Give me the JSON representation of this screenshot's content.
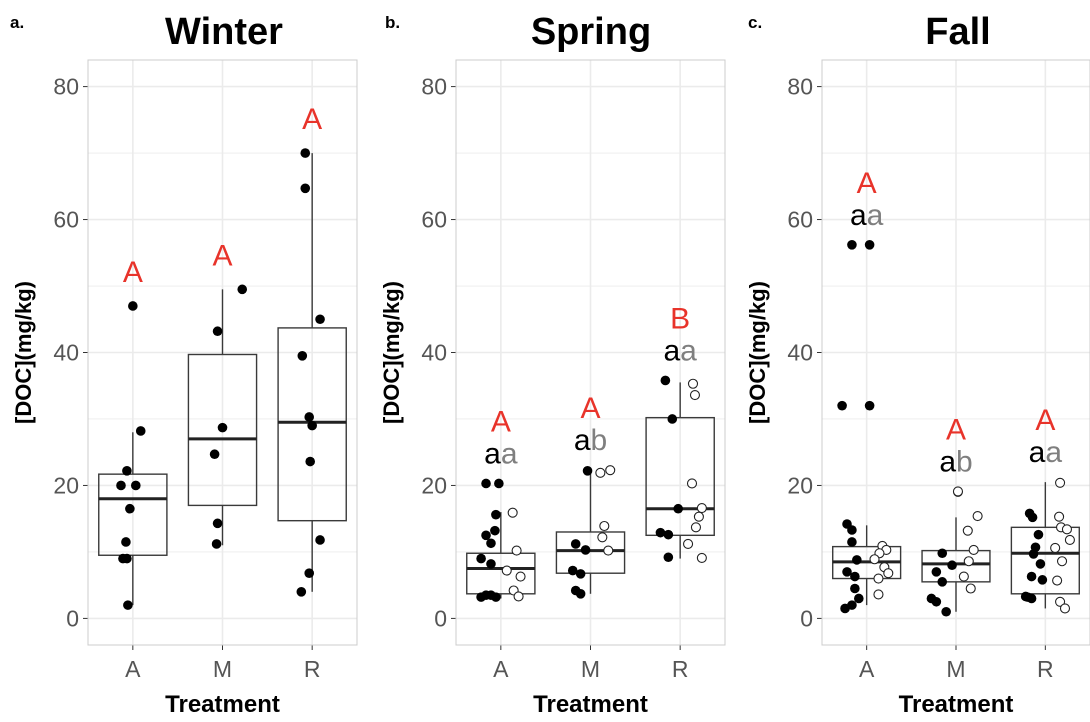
{
  "colors": {
    "letter_red": "#e8332a",
    "letter_gray": "#7f7f7f",
    "grid": "#ebebeb",
    "frame": "#cccccc",
    "box": "#3a3a3a",
    "point": "#000000"
  },
  "chart_data": [
    {
      "type": "box",
      "tag": "a.",
      "title": "Winter",
      "xlabel": "Treatment",
      "ylabel": "[DOC](mg/kg)",
      "categories": [
        "A",
        "M",
        "R"
      ],
      "y_ticks": [
        "0",
        "20",
        "40",
        "60",
        "80"
      ],
      "ylim": [
        -4,
        84
      ],
      "grid": true,
      "boxes": [
        {
          "category": "A",
          "q1": 9.5,
          "median": 18,
          "q3": 21.7,
          "whisker_low": 2,
          "whisker_high": 28
        },
        {
          "category": "M",
          "q1": 17,
          "median": 27,
          "q3": 39.7,
          "whisker_low": 11,
          "whisker_high": 49.5
        },
        {
          "category": "R",
          "q1": 14.7,
          "median": 29.5,
          "q3": 43.7,
          "whisker_low": 4,
          "whisker_high": 70
        }
      ],
      "points_filled": [
        {
          "category": "A",
          "values": [
            47,
            28.2,
            22.2,
            20,
            20,
            16.5,
            11.5,
            9,
            9,
            2
          ],
          "offsets": [
            0,
            0.08,
            -0.06,
            0.03,
            -0.12,
            -0.03,
            -0.07,
            -0.1,
            -0.06,
            -0.05
          ]
        },
        {
          "category": "M",
          "values": [
            49.5,
            43.2,
            28.7,
            24.7,
            14.3,
            11.2
          ],
          "offsets": [
            0.2,
            -0.05,
            0,
            -0.08,
            -0.05,
            -0.06
          ]
        },
        {
          "category": "R",
          "values": [
            70,
            64.7,
            45,
            39.5,
            30.3,
            29,
            23.6,
            11.8,
            6.8,
            4
          ],
          "offsets": [
            -0.07,
            -0.07,
            0.08,
            -0.1,
            -0.03,
            0,
            -0.02,
            0.08,
            -0.03,
            -0.11
          ]
        }
      ],
      "points_open": [],
      "letters": [
        {
          "category": "A",
          "red": "A",
          "pair": ""
        },
        {
          "category": "M",
          "red": "A",
          "pair": ""
        },
        {
          "category": "R",
          "red": "A",
          "pair": ""
        }
      ]
    },
    {
      "type": "box",
      "tag": "b.",
      "title": "Spring",
      "xlabel": "Treatment",
      "ylabel": "[DOC](mg/kg)",
      "categories": [
        "A",
        "M",
        "R"
      ],
      "y_ticks": [
        "0",
        "20",
        "40",
        "60",
        "80"
      ],
      "ylim": [
        -4,
        84
      ],
      "grid": true,
      "boxes": [
        {
          "category": "A",
          "q1": 3.7,
          "median": 7.5,
          "q3": 9.8,
          "whisker_low": 3,
          "whisker_high": 16
        },
        {
          "category": "M",
          "q1": 6.8,
          "median": 10.2,
          "q3": 13,
          "whisker_low": 3.7,
          "whisker_high": 21.8
        },
        {
          "category": "R",
          "q1": 12.5,
          "median": 16.5,
          "q3": 30.2,
          "whisker_low": 9,
          "whisker_high": 35.5
        }
      ],
      "points_filled": [
        {
          "category": "A",
          "values": [
            20.3,
            20.3,
            15.6,
            13.2,
            12.5,
            11.3,
            9,
            8.2,
            3.5,
            3.2,
            3.5,
            3.2
          ],
          "offsets": [
            -0.15,
            -0.02,
            -0.05,
            -0.06,
            -0.15,
            -0.1,
            -0.2,
            -0.1,
            -0.15,
            -0.2,
            -0.1,
            -0.05
          ]
        },
        {
          "category": "M",
          "values": [
            22.2,
            11.2,
            10.3,
            7.2,
            6.7,
            4.2,
            3.7
          ],
          "offsets": [
            -0.03,
            -0.15,
            -0.05,
            -0.18,
            -0.1,
            -0.15,
            -0.1
          ]
        },
        {
          "category": "R",
          "values": [
            35.8,
            30,
            12.9,
            12.6,
            9.2,
            16.5
          ],
          "offsets": [
            -0.15,
            -0.08,
            -0.2,
            -0.12,
            -0.12,
            -0.02
          ]
        }
      ],
      "points_open": [
        {
          "category": "A",
          "values": [
            15.9,
            10.2,
            7.2,
            6.3,
            4.2,
            3.3
          ],
          "offsets": [
            0.12,
            0.16,
            0.06,
            0.2,
            0.13,
            0.18
          ]
        },
        {
          "category": "M",
          "values": [
            22.3,
            21.9,
            13.9,
            12.2,
            10.2
          ],
          "offsets": [
            0.2,
            0.1,
            0.14,
            0.12,
            0.18
          ]
        },
        {
          "category": "R",
          "values": [
            35.3,
            33.6,
            20.3,
            16.6,
            15.3,
            13.7,
            11.2,
            9.1
          ],
          "offsets": [
            0.13,
            0.15,
            0.12,
            0.22,
            0.19,
            0.16,
            0.08,
            0.22
          ]
        }
      ],
      "letters": [
        {
          "category": "A",
          "red": "A",
          "pair": "aa"
        },
        {
          "category": "M",
          "red": "A",
          "pair": "ab"
        },
        {
          "category": "R",
          "red": "B",
          "pair": "aa"
        }
      ]
    },
    {
      "type": "box",
      "tag": "c.",
      "title": "Fall",
      "xlabel": "Treatment",
      "ylabel": "[DOC](mg/kg)",
      "categories": [
        "A",
        "M",
        "R"
      ],
      "y_ticks": [
        "0",
        "20",
        "40",
        "60",
        "80"
      ],
      "ylim": [
        -4,
        84
      ],
      "grid": true,
      "boxes": [
        {
          "category": "A",
          "q1": 6,
          "median": 8.5,
          "q3": 10.8,
          "whisker_low": 2,
          "whisker_high": 14
        },
        {
          "category": "M",
          "q1": 5.5,
          "median": 8.2,
          "q3": 10.2,
          "whisker_low": 1,
          "whisker_high": 15.2
        },
        {
          "category": "R",
          "q1": 3.7,
          "median": 9.8,
          "q3": 13.7,
          "whisker_low": 1.5,
          "whisker_high": 20.5
        }
      ],
      "points_filled": [
        {
          "category": "A",
          "values": [
            56.2,
            56.2,
            32,
            32,
            14.2,
            13.3,
            11.5,
            8.8,
            7,
            6.3,
            4.5,
            3,
            2,
            1.5
          ],
          "offsets": [
            -0.15,
            0.03,
            -0.25,
            0.03,
            -0.2,
            -0.15,
            -0.15,
            -0.1,
            -0.2,
            -0.12,
            -0.12,
            -0.08,
            -0.15,
            -0.22
          ]
        },
        {
          "category": "M",
          "values": [
            19,
            9.8,
            8,
            7,
            5.5,
            3,
            2.5,
            1
          ],
          "offsets": [
            0.02,
            -0.14,
            -0.04,
            -0.2,
            -0.14,
            -0.25,
            -0.2,
            -0.1
          ]
        },
        {
          "category": "R",
          "values": [
            15.8,
            15.2,
            12.6,
            10.7,
            9.7,
            8.2,
            6.3,
            5.8,
            3.3,
            3,
            3.2
          ],
          "offsets": [
            -0.16,
            -0.13,
            -0.07,
            -0.1,
            -0.12,
            -0.05,
            -0.14,
            -0.03,
            -0.2,
            -0.14,
            -0.18
          ]
        }
      ],
      "points_open": [
        {
          "category": "A",
          "values": [
            10.9,
            10.3,
            9.8,
            8.9,
            7.7,
            6.8,
            6,
            3.6
          ],
          "offsets": [
            0.16,
            0.2,
            0.13,
            0.08,
            0.18,
            0.22,
            0.12,
            0.12
          ]
        },
        {
          "category": "M",
          "values": [
            19.1,
            15.4,
            13.2,
            10.3,
            8.6,
            6.3,
            4.5
          ],
          "offsets": [
            0.02,
            0.22,
            0.12,
            0.18,
            0.13,
            0.08,
            0.15
          ]
        },
        {
          "category": "R",
          "values": [
            20.4,
            15.3,
            13.7,
            13.4,
            11.8,
            10.6,
            8.6,
            5.7,
            2.5,
            1.5
          ],
          "offsets": [
            0.15,
            0.14,
            0.16,
            0.22,
            0.25,
            0.1,
            0.17,
            0.12,
            0.15,
            0.2
          ]
        }
      ],
      "letters": [
        {
          "category": "A",
          "red": "A",
          "pair": "aa"
        },
        {
          "category": "M",
          "red": "A",
          "pair": "ab"
        },
        {
          "category": "R",
          "red": "A",
          "pair": "aa"
        }
      ]
    }
  ]
}
